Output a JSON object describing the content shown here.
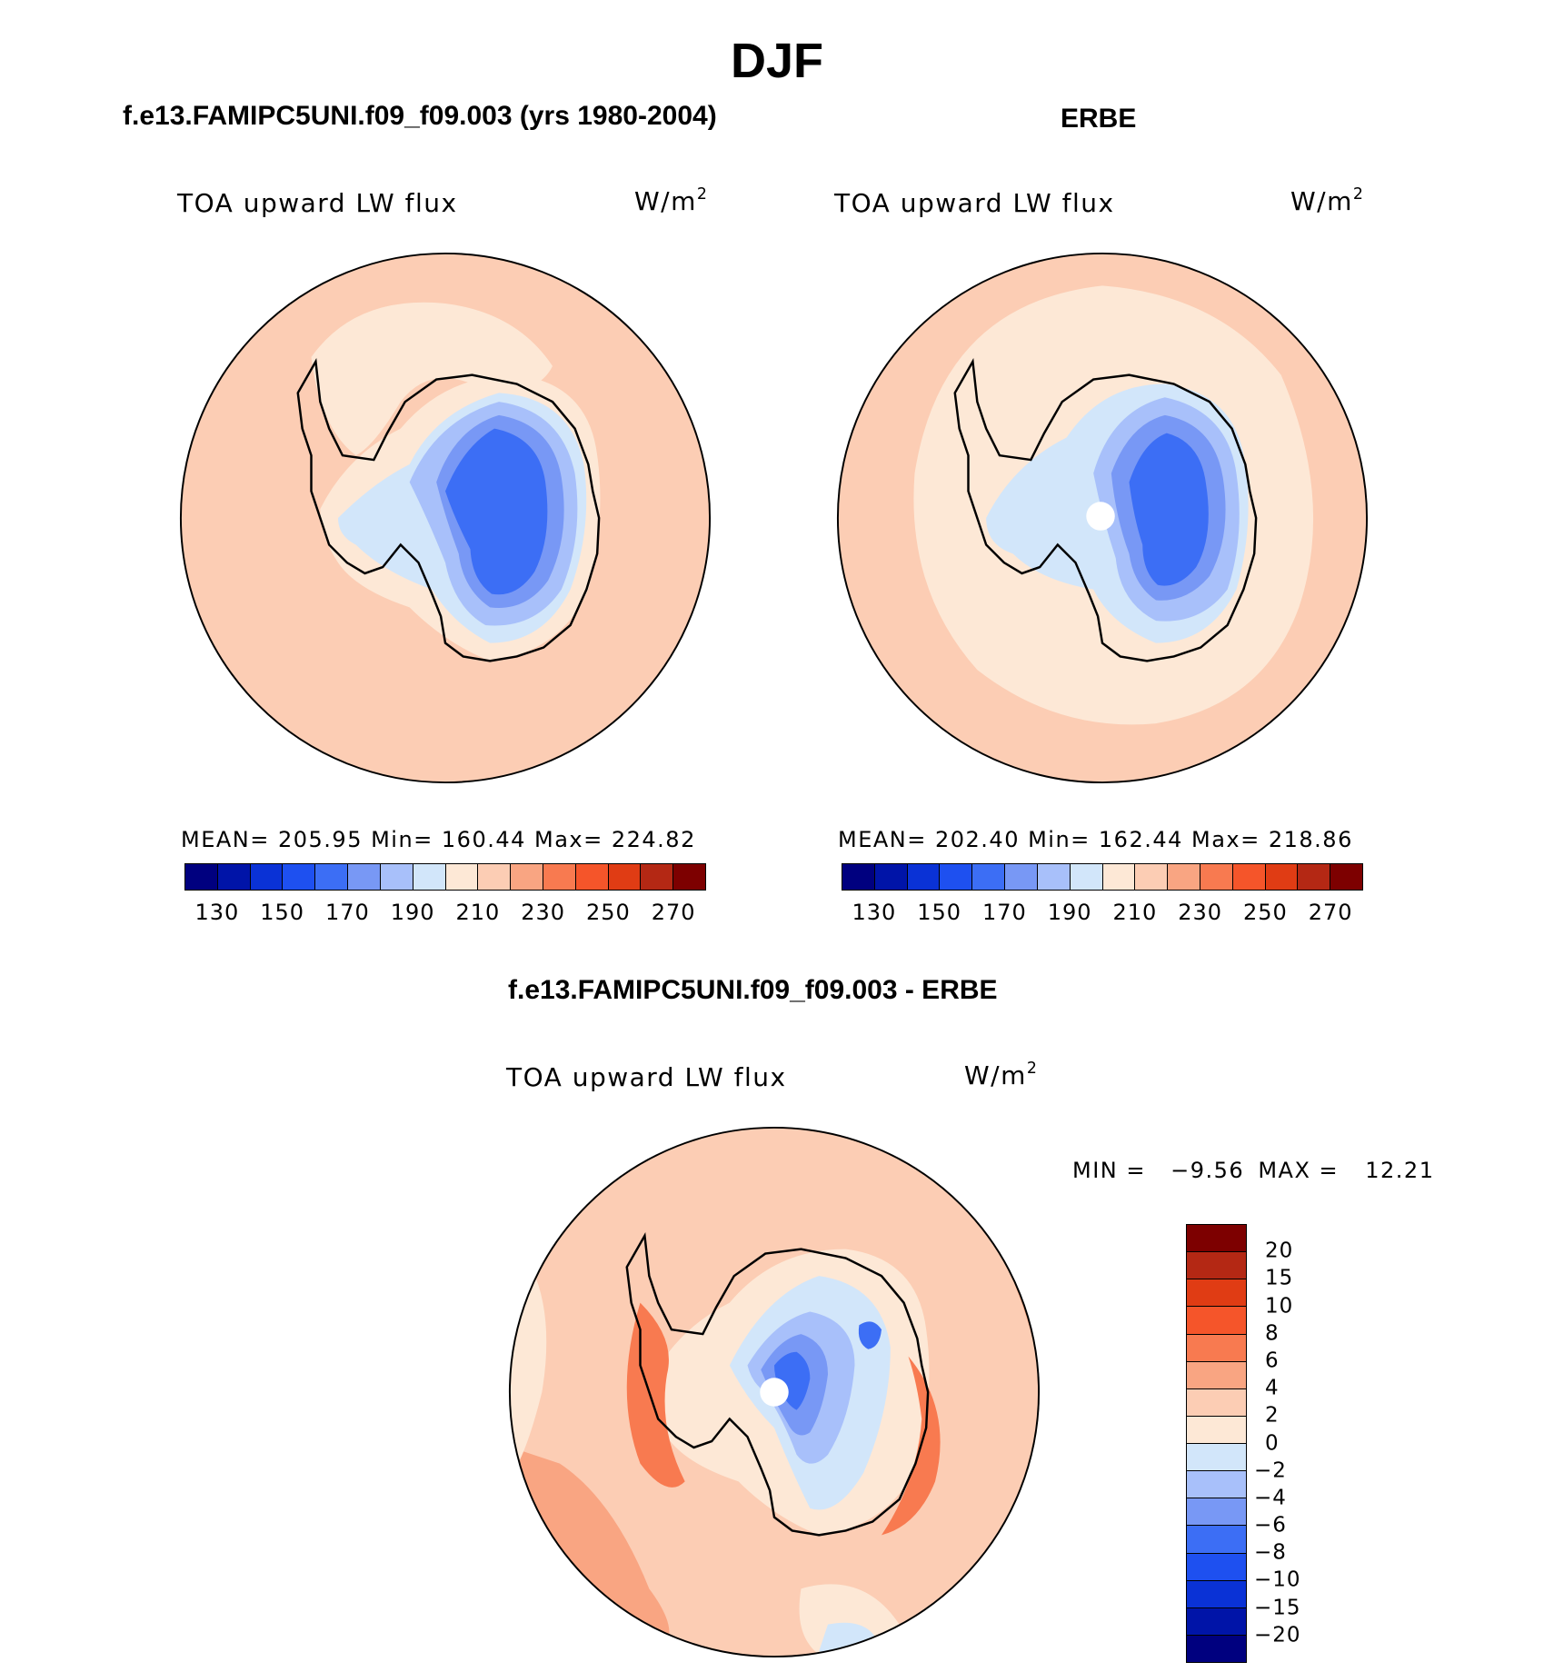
{
  "page_title": "DJF",
  "panels": {
    "model": {
      "title": "f.e13.FAMIPC5UNI.f09_f09.003 (yrs 1980-2004)",
      "variable": "TOA upward LW flux",
      "units": "W/m",
      "units_exp": "2",
      "stats": "MEAN=  205.95   Min=  160.44   Max=  224.82",
      "ticks": [
        "130",
        "150",
        "170",
        "190",
        "210",
        "230",
        "250",
        "270"
      ]
    },
    "obs": {
      "title": "ERBE",
      "variable": "TOA upward LW flux",
      "units": "W/m",
      "units_exp": "2",
      "stats": "MEAN=  202.40   Min=  162.44   Max=  218.86",
      "ticks": [
        "130",
        "150",
        "170",
        "190",
        "210",
        "230",
        "250",
        "270"
      ]
    },
    "diff": {
      "title": "f.e13.FAMIPC5UNI.f09_f09.003 - ERBE",
      "variable": "TOA upward LW flux",
      "units": "W/m",
      "units_exp": "2",
      "min_label": "MIN =",
      "min_value": "−9.56",
      "max_label": "MAX =",
      "max_value": "12.21",
      "ticks": [
        "20",
        "15",
        "10",
        "8",
        "6",
        "4",
        "2",
        "0",
        "−2",
        "−4",
        "−6",
        "−8",
        "−10",
        "−15",
        "−20"
      ]
    }
  },
  "colors": {
    "abs_scale": [
      "#00007f",
      "#0014a8",
      "#0a32d6",
      "#1e50f0",
      "#3c6ef5",
      "#7898f5",
      "#a8c0fa",
      "#d2e6fa",
      "#fde8d6",
      "#fccdb4",
      "#f9a582",
      "#f87a50",
      "#f5552a",
      "#e03c14",
      "#b42814",
      "#7d0000"
    ],
    "diff_scale": [
      "#7d0000",
      "#b42814",
      "#e03c14",
      "#f5552a",
      "#f87a50",
      "#f9a582",
      "#fccdb4",
      "#fde8d6",
      "#d2e6fa",
      "#a8c0fa",
      "#7898f5",
      "#3c6ef5",
      "#1e50f0",
      "#0a32d6",
      "#0014a8",
      "#00007f"
    ],
    "coast": "#000000"
  }
}
